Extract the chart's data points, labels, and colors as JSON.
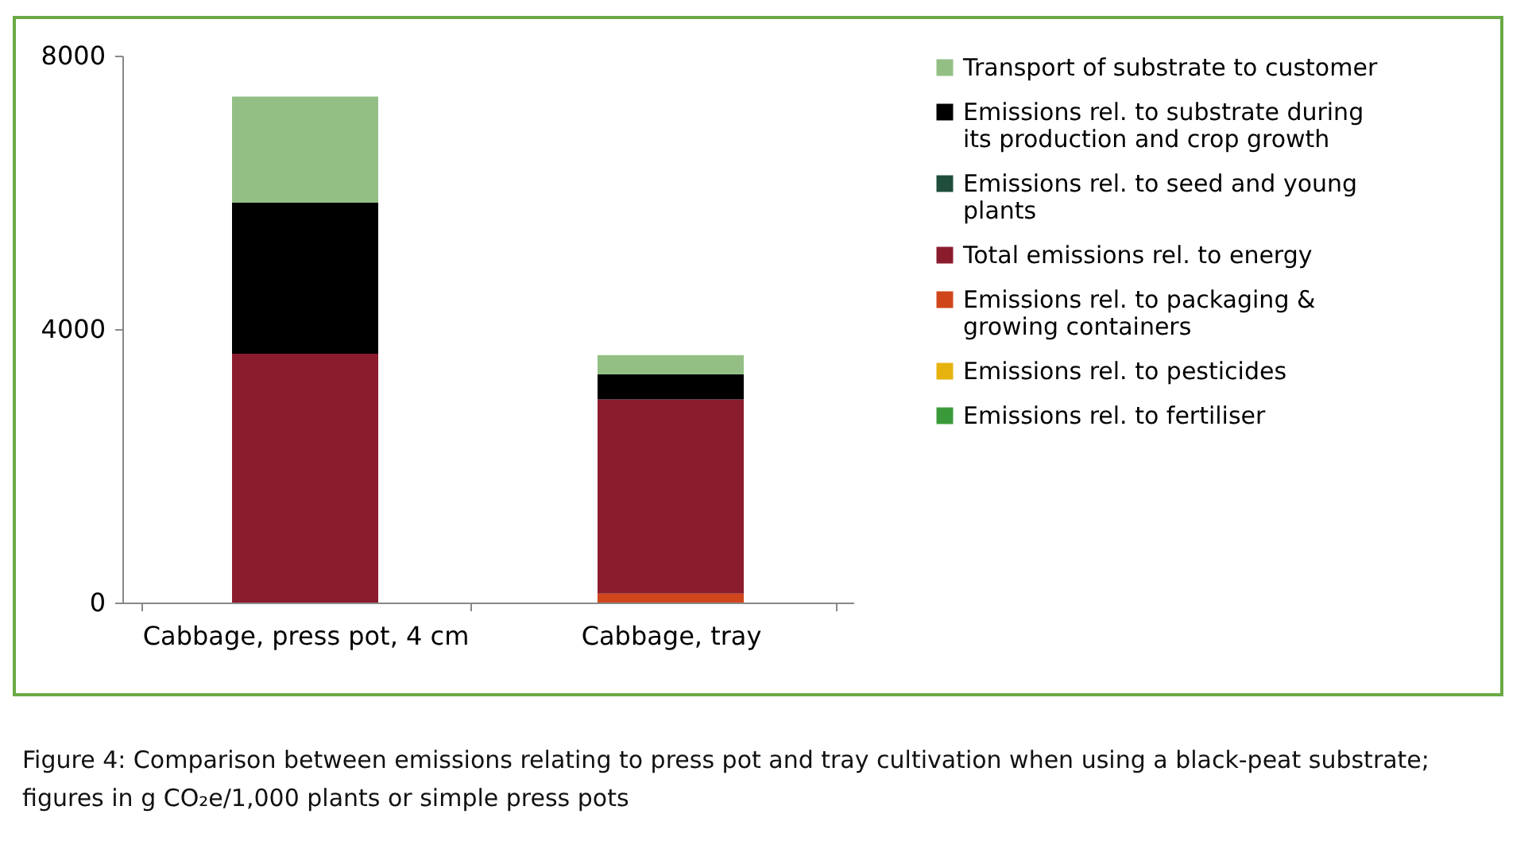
{
  "chart_data": {
    "type": "bar",
    "stacked": true,
    "categories": [
      "Cabbage, press pot, 4 cm",
      "Cabbage, tray"
    ],
    "series": [
      {
        "name": "Emissions rel. to fertiliser",
        "color": "#3a9a3a",
        "values": [
          0,
          0
        ]
      },
      {
        "name": "Emissions rel. to pesticides",
        "color": "#e6b30e",
        "values": [
          0,
          0
        ]
      },
      {
        "name": "Emissions rel. to packaging & growing containers",
        "color": "#d0461b",
        "values": [
          0,
          130
        ]
      },
      {
        "name": "Total emissions rel. to energy",
        "color": "#8b1c2e",
        "values": [
          3640,
          2840
        ]
      },
      {
        "name": "Emissions rel. to seed and young plants",
        "color": "#1f4e3d",
        "values": [
          0,
          0
        ]
      },
      {
        "name": "Emissions rel. to substrate during its production and crop growth",
        "color": "#000000",
        "values": [
          2210,
          370
        ]
      },
      {
        "name": "Transport of substrate to customer",
        "color": "#93bf85",
        "values": [
          1550,
          280
        ]
      }
    ],
    "ylim": [
      0,
      8000
    ],
    "yticks": [
      0,
      4000,
      8000
    ],
    "grid": false,
    "legend": "right",
    "annotations": [
      "Figure 4: Comparison between emissions relating to press pot and tray cultivation when using a black-peat substrate; figures in g CO₂e/1,000 plants or simple press pots"
    ]
  }
}
